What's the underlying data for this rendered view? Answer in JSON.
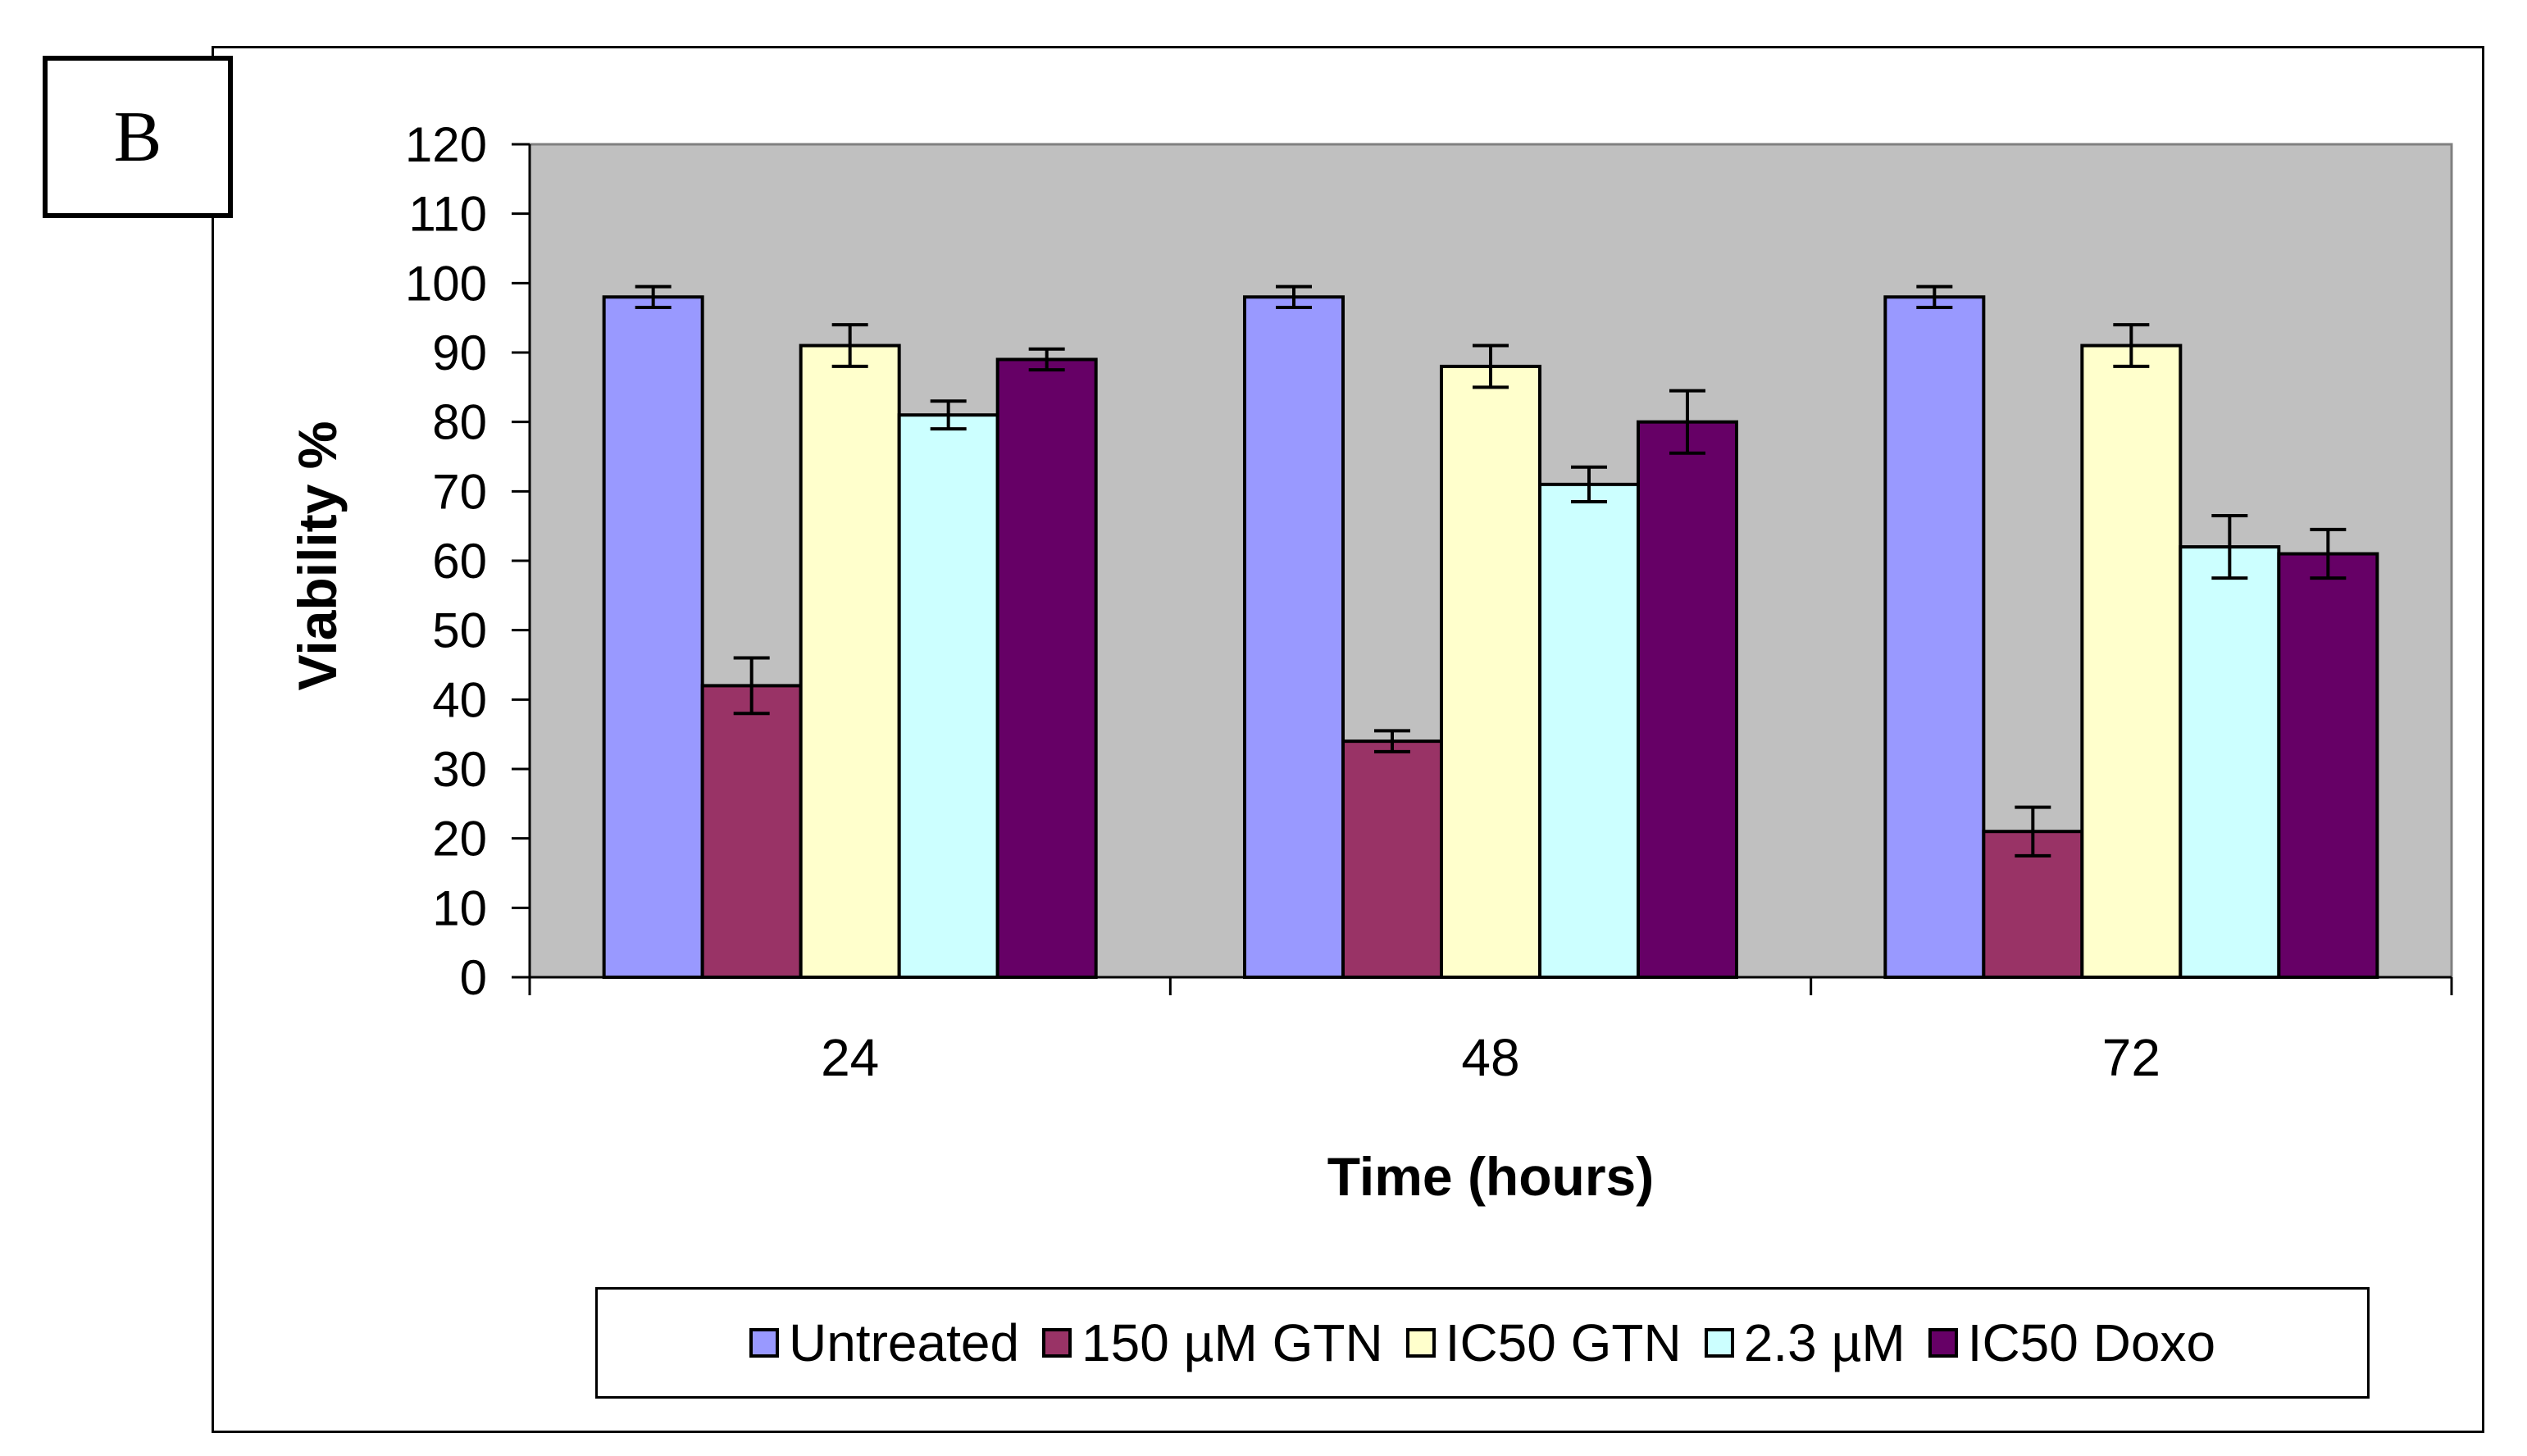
{
  "panel_label": "B",
  "chart_data": {
    "type": "bar",
    "title": "",
    "xlabel": "Time (hours)",
    "ylabel": "Viability %",
    "ylim": [
      0,
      120
    ],
    "yticks": [
      0,
      10,
      20,
      30,
      40,
      50,
      60,
      70,
      80,
      90,
      100,
      110,
      120
    ],
    "categories": [
      "24",
      "48",
      "72"
    ],
    "grid": false,
    "legend_position": "bottom",
    "background_color": "#c0c0c0",
    "series": [
      {
        "name": "Untreated",
        "color": "#9999ff",
        "values": [
          98,
          98,
          98
        ],
        "errors": [
          1.5,
          1.5,
          1.5
        ]
      },
      {
        "name": "150 µM GTN",
        "color": "#993366",
        "values": [
          42,
          34,
          21
        ],
        "errors": [
          4,
          1.5,
          3.5
        ]
      },
      {
        "name": "IC50 GTN",
        "color": "#ffffcc",
        "values": [
          91,
          88,
          91
        ],
        "errors": [
          3,
          3,
          3
        ]
      },
      {
        "name": "2.3 µM",
        "color": "#ccffff",
        "values": [
          81,
          71,
          62
        ],
        "errors": [
          2,
          2.5,
          4.5
        ]
      },
      {
        "name": "IC50 Doxo",
        "color": "#660066",
        "values": [
          89,
          80,
          61
        ],
        "errors": [
          1.5,
          4.5,
          3.5
        ]
      }
    ]
  }
}
